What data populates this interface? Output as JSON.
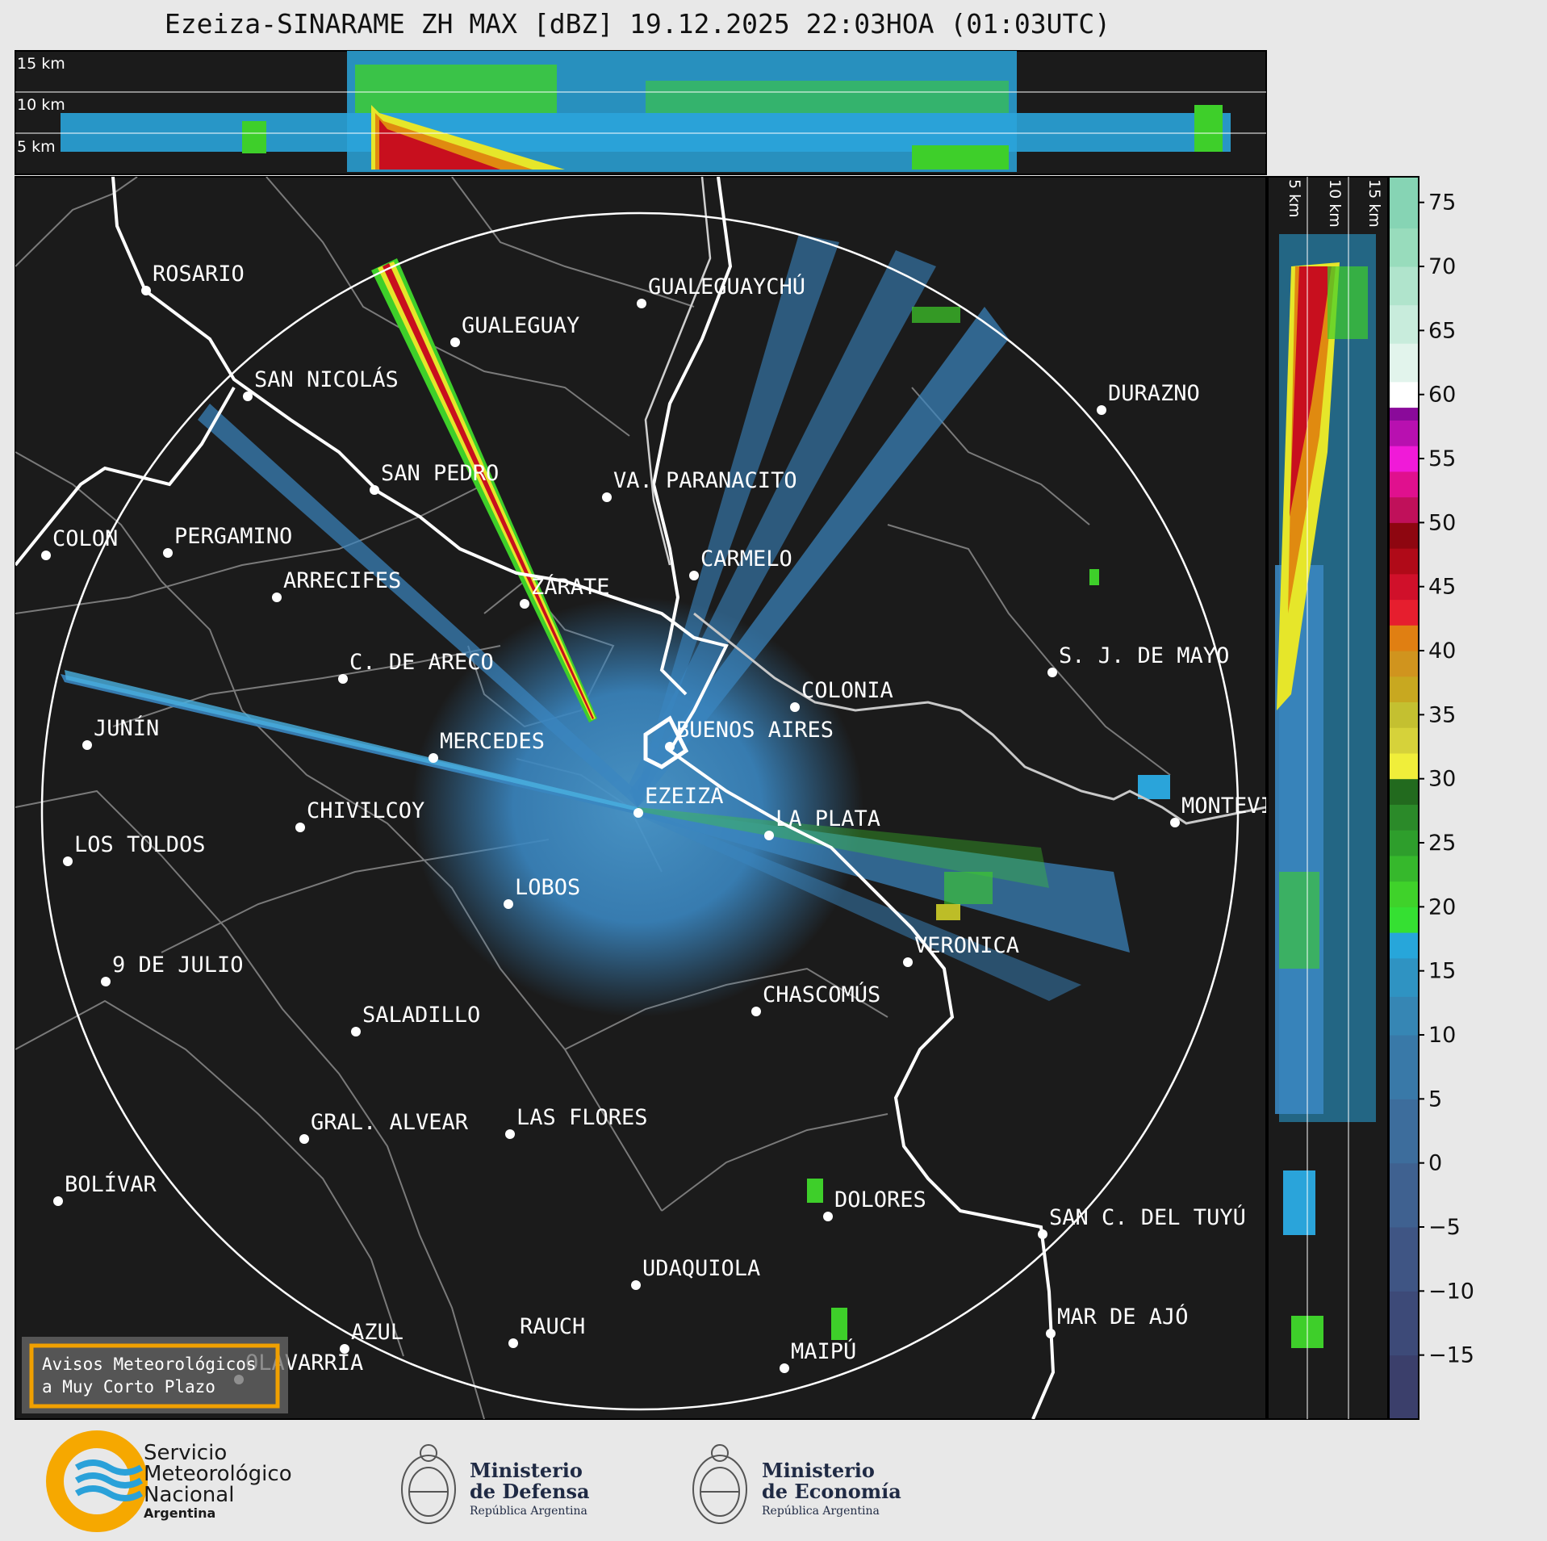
{
  "title": "Ezeiza-SINARAME ZH MAX [dBZ] 19.12.2025 22:03HOA (01:03UTC)",
  "top_panel": {
    "heights": [
      "15 km",
      "10 km",
      "5 km"
    ]
  },
  "side_panel": {
    "heights": [
      "5 km",
      "10 km",
      "15 km"
    ]
  },
  "colorbar": {
    "ticks": [
      "75",
      "70",
      "65",
      "60",
      "55",
      "50",
      "45",
      "40",
      "35",
      "30",
      "25",
      "20",
      "15",
      "10",
      "5",
      "0",
      "−5",
      "−10",
      "−15"
    ],
    "range": [
      -20,
      77
    ]
  },
  "cities": [
    {
      "name": "ROSARIO"
    },
    {
      "name": "GUALEGUAYCHÚ"
    },
    {
      "name": "GUALEGUAY"
    },
    {
      "name": "SAN NICOLÁS"
    },
    {
      "name": "DURAZNO"
    },
    {
      "name": "SAN PEDRO"
    },
    {
      "name": "VA. PARANACITO"
    },
    {
      "name": "COLON"
    },
    {
      "name": "PERGAMINO"
    },
    {
      "name": "CARMELO"
    },
    {
      "name": "ARRECIFES"
    },
    {
      "name": "ZÁRATE"
    },
    {
      "name": "S. J. DE MAYO"
    },
    {
      "name": "C. DE ARECO"
    },
    {
      "name": "COLONIA"
    },
    {
      "name": "JUNÍN"
    },
    {
      "name": "BUENOS AIRES"
    },
    {
      "name": "MERCEDES"
    },
    {
      "name": "MONTEVIDEO"
    },
    {
      "name": "EZEIZA"
    },
    {
      "name": "CHIVILCOY"
    },
    {
      "name": "LA PLATA"
    },
    {
      "name": "LOS TOLDOS"
    },
    {
      "name": "LOBOS"
    },
    {
      "name": "VERONICA"
    },
    {
      "name": "9 DE JULIO"
    },
    {
      "name": "CHASCOMÚS"
    },
    {
      "name": "SALADILLO"
    },
    {
      "name": "GRAL. ALVEAR"
    },
    {
      "name": "LAS FLORES"
    },
    {
      "name": "BOLÍVAR"
    },
    {
      "name": "DOLORES"
    },
    {
      "name": "SAN C. DEL TUYÚ"
    },
    {
      "name": "UDAQUIOLA"
    },
    {
      "name": "AZUL"
    },
    {
      "name": "RAUCH"
    },
    {
      "name": "MAR DE AJÓ"
    },
    {
      "name": "OLAVARRÍA"
    },
    {
      "name": "MAIPÚ"
    }
  ],
  "alert_box": {
    "line1": "Avisos Meteorológicos",
    "line2": "a Muy Corto Plazo"
  },
  "logos": {
    "smn": {
      "line1": "Servicio",
      "line2": "Meteorológico",
      "line3": "Nacional",
      "line4": "Argentina"
    },
    "defensa": {
      "line1": "Ministerio",
      "line2": "de Defensa",
      "line3": "República Argentina"
    },
    "economia": {
      "line1": "Ministerio",
      "line2": "de Economía",
      "line3": "República Argentina"
    }
  },
  "colors": {
    "background": "#1b1b1b",
    "echo_base": "#3a86c0",
    "echo_light": "#2aa4da",
    "echo_green": "#3ecf2a",
    "echo_yellow": "#e6e62a",
    "echo_red": "#c80f1e",
    "smn_orange": "#f6a800",
    "smn_blue": "#2aa1d9",
    "alert_border": "#f0a000"
  }
}
